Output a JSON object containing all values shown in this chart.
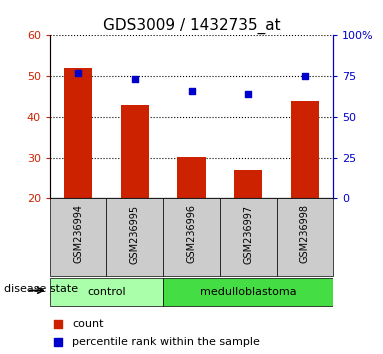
{
  "title": "GDS3009 / 1432735_at",
  "samples": [
    "GSM236994",
    "GSM236995",
    "GSM236996",
    "GSM236997",
    "GSM236998"
  ],
  "counts": [
    52.0,
    43.0,
    30.2,
    27.0,
    44.0
  ],
  "percentiles": [
    77.0,
    73.0,
    66.0,
    64.0,
    75.0
  ],
  "control_color": "#aaffaa",
  "medulloblastoma_color": "#44dd44",
  "bar_color": "#cc2200",
  "dot_color": "#0000cc",
  "left_ylim": [
    20,
    60
  ],
  "left_yticks": [
    20,
    30,
    40,
    50,
    60
  ],
  "right_ylim": [
    0,
    100
  ],
  "right_yticks": [
    0,
    25,
    50,
    75,
    100
  ],
  "right_yticklabels": [
    "0",
    "25",
    "50",
    "75",
    "100%"
  ],
  "bar_width": 0.5,
  "legend_count": "count",
  "legend_percentile": "percentile rank within the sample",
  "disease_state_label": "disease state",
  "tick_area_color": "#cccccc",
  "n_control": 2,
  "n_medulloblastoma": 3
}
